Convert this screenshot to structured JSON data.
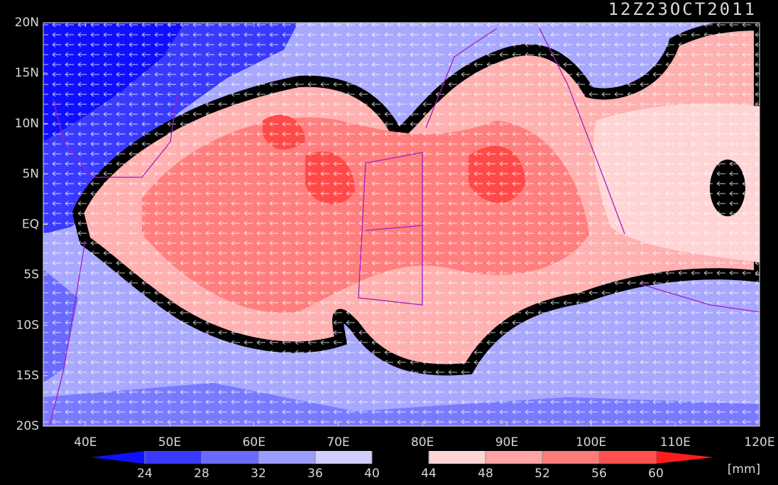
{
  "chart_data": {
    "type": "contour-map",
    "title": "12Z23OCT2011",
    "xlim": [
      35,
      120
    ],
    "ylim": [
      -20,
      20
    ],
    "xticks": [
      {
        "value": 40,
        "label": "40E"
      },
      {
        "value": 50,
        "label": "50E"
      },
      {
        "value": 60,
        "label": "60E"
      },
      {
        "value": 70,
        "label": "70E"
      },
      {
        "value": 80,
        "label": "80E"
      },
      {
        "value": 90,
        "label": "90E"
      },
      {
        "value": 100,
        "label": "100E"
      },
      {
        "value": 110,
        "label": "110E"
      },
      {
        "value": 120,
        "label": "120E"
      }
    ],
    "yticks": [
      {
        "value": 20,
        "label": "20N"
      },
      {
        "value": 15,
        "label": "15N"
      },
      {
        "value": 10,
        "label": "10N"
      },
      {
        "value": 5,
        "label": "5N"
      },
      {
        "value": 0,
        "label": "EQ"
      },
      {
        "value": -5,
        "label": "5S"
      },
      {
        "value": -10,
        "label": "10S"
      },
      {
        "value": -15,
        "label": "15S"
      },
      {
        "value": -20,
        "label": "20S"
      }
    ],
    "colorbar": {
      "levels": [
        24,
        28,
        32,
        36,
        40,
        44,
        48,
        52,
        56,
        60
      ],
      "colors": [
        "#1010ff",
        "#3a3aff",
        "#6a6aff",
        "#9c9cff",
        "#cfcfff",
        "#000000",
        "#ffd4d4",
        "#ffa4a4",
        "#ff7a7a",
        "#ff5050",
        "#ff1c1c"
      ],
      "unit_label": "[mm]"
    }
  }
}
